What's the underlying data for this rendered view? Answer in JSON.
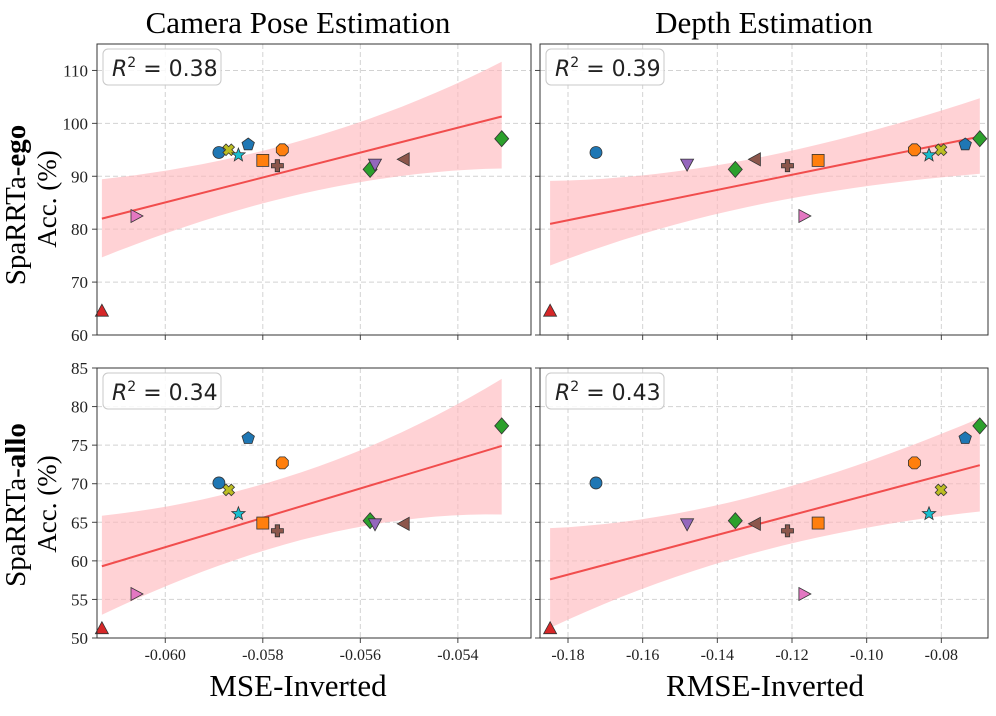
{
  "chart_data": {
    "type": "scatter",
    "column_titles": [
      "Camera Pose Estimation",
      "Depth Estimation"
    ],
    "row_labels": [
      {
        "prefix": "SpaRRTa-",
        "bold": "ego"
      },
      {
        "prefix": "SpaRRTa-",
        "bold": "allo"
      }
    ],
    "ylabel": "Acc.  (%)",
    "xlabels": [
      "MSE-Inverted",
      "RMSE-Inverted"
    ],
    "xlim": [
      [
        -0.0614,
        -0.0525
      ],
      [
        -0.1875,
        -0.0675
      ]
    ],
    "xticks": [
      [
        {
          "v": -0.06,
          "label": "-0.060"
        },
        {
          "v": -0.058,
          "label": "-0.058"
        },
        {
          "v": -0.056,
          "label": "-0.056"
        },
        {
          "v": -0.054,
          "label": "-0.054"
        }
      ],
      [
        {
          "v": -0.18,
          "label": "-0.18"
        },
        {
          "v": -0.16,
          "label": "-0.16"
        },
        {
          "v": -0.14,
          "label": "-0.14"
        },
        {
          "v": -0.12,
          "label": "-0.12"
        },
        {
          "v": -0.1,
          "label": "-0.10"
        },
        {
          "v": -0.08,
          "label": "-0.08"
        }
      ]
    ],
    "ylim": [
      [
        60,
        115
      ],
      [
        50,
        85
      ]
    ],
    "yticks": [
      [
        {
          "v": 60,
          "label": "60"
        },
        {
          "v": 70,
          "label": "70"
        },
        {
          "v": 80,
          "label": "80"
        },
        {
          "v": 90,
          "label": "90"
        },
        {
          "v": 100,
          "label": "100"
        },
        {
          "v": 110,
          "label": "110"
        }
      ],
      [
        {
          "v": 50,
          "label": "50"
        },
        {
          "v": 55,
          "label": "55"
        },
        {
          "v": 60,
          "label": "60"
        },
        {
          "v": 65,
          "label": "65"
        },
        {
          "v": 70,
          "label": "70"
        },
        {
          "v": 75,
          "label": "75"
        },
        {
          "v": 80,
          "label": "80"
        },
        {
          "v": 85,
          "label": "85"
        }
      ]
    ],
    "r2": [
      [
        "0.38",
        "0.39"
      ],
      [
        "0.34",
        "0.43"
      ]
    ],
    "fit": [
      [
        {
          "x": [
            -0.0613,
            -0.0531
          ],
          "y": [
            82.0,
            101.3
          ],
          "band_lo": [
            73.6,
            91.8
          ],
          "band_hi": [
            90.5,
            111.3
          ]
        },
        {
          "x": [
            -0.1848,
            -0.0697
          ],
          "y": [
            81.0,
            97.5
          ],
          "band_lo": [
            72.0,
            90.7
          ],
          "band_hi": [
            90.3,
            104.5
          ]
        }
      ],
      [
        {
          "x": [
            -0.0613,
            -0.0531
          ],
          "y": [
            59.3,
            74.9
          ],
          "band_lo": [
            52.1,
            66.3
          ],
          "band_hi": [
            66.8,
            83.3
          ]
        },
        {
          "x": [
            -0.1848,
            -0.0697
          ],
          "y": [
            57.6,
            72.4
          ],
          "band_lo": [
            50.4,
            66.6
          ],
          "band_hi": [
            65.2,
            78.3
          ]
        }
      ]
    ],
    "series": [
      {
        "marker": "triangle-up",
        "color": "#d62728",
        "x": [
          -0.0613,
          -0.1848
        ],
        "y": [
          [
            64.5,
            64.5
          ],
          [
            51.2,
            51.2
          ]
        ]
      },
      {
        "marker": "circle",
        "color": "#1f77b4",
        "x": [
          -0.0589,
          -0.1725
        ],
        "y": [
          [
            94.5,
            94.5
          ],
          [
            70.1,
            70.1
          ]
        ]
      },
      {
        "marker": "triangle-right",
        "color": "#e377c2",
        "x": [
          -0.0606,
          -0.1168
        ],
        "y": [
          [
            82.5,
            82.5
          ],
          [
            55.7,
            55.7
          ]
        ]
      },
      {
        "marker": "x",
        "color": "#bcbd22",
        "x": [
          -0.0587,
          -0.0801
        ],
        "y": [
          [
            95.0,
            95.0
          ],
          [
            69.2,
            69.2
          ]
        ]
      },
      {
        "marker": "star",
        "color": "#17becf",
        "x": [
          -0.0585,
          -0.0833
        ],
        "y": [
          [
            94.0,
            94.0
          ],
          [
            66.1,
            66.1
          ]
        ]
      },
      {
        "marker": "pentagon",
        "color": "#1f77b4",
        "x": [
          -0.0583,
          -0.0736
        ],
        "y": [
          [
            96.0,
            96.0
          ],
          [
            75.9,
            75.9
          ]
        ]
      },
      {
        "marker": "square",
        "color": "#ff7f0e",
        "x": [
          -0.058,
          -0.113
        ],
        "y": [
          [
            93.0,
            93.0
          ],
          [
            64.9,
            64.9
          ]
        ]
      },
      {
        "marker": "plus",
        "color": "#8c564b",
        "x": [
          -0.0577,
          -0.1212
        ],
        "y": [
          [
            92.0,
            92.0
          ],
          [
            63.9,
            63.9
          ]
        ]
      },
      {
        "marker": "octagon",
        "color": "#ff7f0e",
        "x": [
          -0.0576,
          -0.0872
        ],
        "y": [
          [
            95.0,
            95.0
          ],
          [
            72.7,
            72.7
          ]
        ]
      },
      {
        "marker": "diamond",
        "color": "#2ca02c",
        "x": [
          -0.0558,
          -0.1352
        ],
        "y": [
          [
            91.3,
            91.3
          ],
          [
            65.2,
            65.2
          ]
        ]
      },
      {
        "marker": "triangle-down",
        "color": "#9467bd",
        "x": [
          -0.0557,
          -0.1481
        ],
        "y": [
          [
            92.3,
            92.3
          ],
          [
            64.8,
            64.8
          ]
        ]
      },
      {
        "marker": "triangle-left",
        "color": "#8c564b",
        "x": [
          -0.0551,
          -0.1298
        ],
        "y": [
          [
            93.2,
            93.2
          ],
          [
            64.8,
            64.8
          ]
        ]
      },
      {
        "marker": "diamond",
        "color": "#2ca02c",
        "x": [
          -0.0531,
          -0.0697
        ],
        "y": [
          [
            97.1,
            97.1
          ],
          [
            77.5,
            77.5
          ]
        ]
      }
    ]
  }
}
